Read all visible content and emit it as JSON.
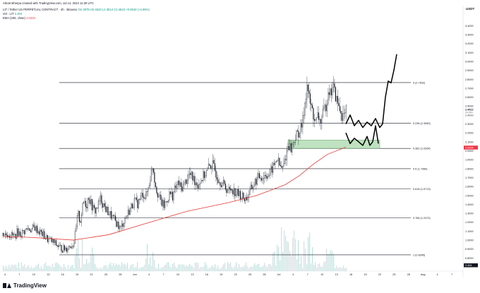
{
  "header": {
    "credit": "AltcoinSherpa created with TradingView.com, Jul 14, 2024 11:30 UTC",
    "symbol_line": {
      "symbol": "LIT / Tether US PERPETUAL CONTRACT · 4h · Binance",
      "ohlc": "O2.3878 H2.4623 L2.3814 C2.4522 +0.0643 (+2.69%)"
    },
    "vol_line": {
      "label": "Vol · LIT",
      "value": "2.404"
    },
    "ema_line": {
      "label": "EMA (200, close)",
      "value": "2.0334"
    }
  },
  "currency_label": "USDT",
  "brand": {
    "name": "TradingView",
    "logo_icon": "tradingview-logo-icon"
  },
  "chart_data": {
    "type": "candlestick",
    "timeframe": "4h",
    "y_axis_ticks": [
      "3.4000",
      "3.3000",
      "3.2000",
      "3.1000",
      "3.0000",
      "2.9000",
      "2.8000",
      "2.7000",
      "2.6000",
      "2.5000",
      "2.4000",
      "2.3000",
      "2.2000",
      "2.1000",
      "2.0000",
      "1.9000",
      "1.8000",
      "1.7000",
      "1.6000",
      "1.5000",
      "1.4000",
      "1.3000",
      "1.2000",
      "1.1000",
      "1.0000",
      "0.9000",
      "0.8000"
    ],
    "ylim": [
      0.7,
      3.45
    ],
    "x_axis_ticks": [
      "4",
      "7",
      "10",
      "13",
      "16",
      "19",
      "22",
      "25",
      "28",
      "Jun",
      "4",
      "7",
      "10",
      "13",
      "16",
      "19",
      "22",
      "25",
      "28",
      "Jul",
      "4",
      "7",
      "10",
      "13",
      "16",
      "19",
      "22",
      "25",
      "28",
      "Aug",
      "4",
      "7"
    ],
    "price_axis_labels": {
      "current": "2.4522",
      "current_sub": "2h 29m",
      "ema": "2.0334"
    },
    "fibonacci_levels": [
      {
        "label": "0 (2.7632)",
        "value": 2.7632
      },
      {
        "label": "0.236 (2.3080)",
        "value": 2.308
      },
      {
        "label": "0.382 (2.0264)",
        "value": 2.0264
      },
      {
        "label": "0.5 (1.7989)",
        "value": 1.7989
      },
      {
        "label": "0.618 (1.5713)",
        "value": 1.5713
      },
      {
        "label": "0.786 (1.2472)",
        "value": 1.2472
      },
      {
        "label": "1 (0.8345)",
        "value": 0.8345
      }
    ],
    "support_zone": {
      "low": 2.0264,
      "high": 2.12
    },
    "price_path": [
      [
        0,
        1.08
      ],
      [
        4,
        1.06
      ],
      [
        8,
        1.07
      ],
      [
        12,
        1.05
      ],
      [
        16,
        1.04
      ],
      [
        20,
        1.09
      ],
      [
        25,
        1.07
      ],
      [
        30,
        1.1
      ],
      [
        35,
        1.13
      ],
      [
        40,
        1.12
      ],
      [
        45,
        1.14
      ],
      [
        50,
        1.1
      ],
      [
        55,
        1.07
      ],
      [
        60,
        1.03
      ],
      [
        65,
        1.0
      ],
      [
        70,
        0.98
      ],
      [
        75,
        0.95
      ],
      [
        80,
        0.92
      ],
      [
        85,
        0.9
      ],
      [
        90,
        0.91
      ],
      [
        95,
        0.94
      ],
      [
        100,
        0.96
      ],
      [
        103,
        1.1
      ],
      [
        106,
        1.3
      ],
      [
        109,
        1.2
      ],
      [
        112,
        1.35
      ],
      [
        115,
        1.45
      ],
      [
        118,
        1.38
      ],
      [
        121,
        1.5
      ],
      [
        124,
        1.42
      ],
      [
        127,
        1.36
      ],
      [
        130,
        1.32
      ],
      [
        134,
        1.38
      ],
      [
        138,
        1.46
      ],
      [
        142,
        1.4
      ],
      [
        146,
        1.34
      ],
      [
        150,
        1.3
      ],
      [
        154,
        1.26
      ],
      [
        158,
        1.22
      ],
      [
        162,
        1.18
      ],
      [
        166,
        1.12
      ],
      [
        170,
        1.2
      ],
      [
        174,
        1.26
      ],
      [
        178,
        1.32
      ],
      [
        182,
        1.38
      ],
      [
        186,
        1.44
      ],
      [
        190,
        1.4
      ],
      [
        194,
        1.46
      ],
      [
        198,
        1.52
      ],
      [
        202,
        1.48
      ],
      [
        206,
        1.6
      ],
      [
        209,
        1.72
      ],
      [
        212,
        1.85
      ],
      [
        215,
        1.65
      ],
      [
        218,
        1.55
      ],
      [
        221,
        1.48
      ],
      [
        224,
        1.42
      ],
      [
        228,
        1.38
      ],
      [
        232,
        1.45
      ],
      [
        236,
        1.52
      ],
      [
        240,
        1.5
      ],
      [
        244,
        1.58
      ],
      [
        248,
        1.64
      ],
      [
        252,
        1.58
      ],
      [
        256,
        1.62
      ],
      [
        260,
        1.68
      ],
      [
        264,
        1.74
      ],
      [
        268,
        1.7
      ],
      [
        272,
        1.66
      ],
      [
        276,
        1.62
      ],
      [
        280,
        1.67
      ],
      [
        284,
        1.72
      ],
      [
        288,
        1.76
      ],
      [
        292,
        1.82
      ],
      [
        296,
        1.86
      ],
      [
        300,
        1.78
      ],
      [
        304,
        1.7
      ],
      [
        308,
        1.66
      ],
      [
        312,
        1.62
      ],
      [
        316,
        1.58
      ],
      [
        320,
        1.55
      ],
      [
        324,
        1.58
      ],
      [
        328,
        1.54
      ],
      [
        332,
        1.52
      ],
      [
        336,
        1.5
      ],
      [
        340,
        1.48
      ],
      [
        344,
        1.46
      ],
      [
        348,
        1.52
      ],
      [
        352,
        1.58
      ],
      [
        356,
        1.64
      ],
      [
        360,
        1.68
      ],
      [
        364,
        1.72
      ],
      [
        368,
        1.7
      ],
      [
        372,
        1.74
      ],
      [
        376,
        1.72
      ],
      [
        380,
        1.78
      ],
      [
        384,
        1.84
      ],
      [
        388,
        1.92
      ],
      [
        392,
        1.82
      ],
      [
        396,
        1.8
      ],
      [
        400,
        1.92
      ],
      [
        404,
        2.08
      ],
      [
        408,
        2.02
      ],
      [
        412,
        2.12
      ],
      [
        416,
        2.18
      ],
      [
        420,
        2.22
      ],
      [
        424,
        2.3
      ],
      [
        428,
        2.58
      ],
      [
        431,
        2.75
      ],
      [
        434,
        2.55
      ],
      [
        437,
        2.48
      ],
      [
        440,
        2.38
      ],
      [
        443,
        2.3
      ],
      [
        446,
        2.4
      ],
      [
        449,
        2.32
      ],
      [
        452,
        2.38
      ],
      [
        455,
        2.45
      ],
      [
        458,
        2.52
      ],
      [
        461,
        2.72
      ],
      [
        464,
        2.62
      ],
      [
        467,
        2.75
      ],
      [
        470,
        2.64
      ],
      [
        473,
        2.55
      ],
      [
        476,
        2.48
      ],
      [
        480,
        2.4
      ],
      [
        484,
        2.38
      ],
      [
        486,
        2.45
      ]
    ],
    "ema_path": [
      [
        0,
        1.04
      ],
      [
        40,
        1.03
      ],
      [
        100,
        1.0
      ],
      [
        150,
        1.06
      ],
      [
        200,
        1.18
      ],
      [
        260,
        1.32
      ],
      [
        320,
        1.42
      ],
      [
        360,
        1.5
      ],
      [
        400,
        1.62
      ],
      [
        420,
        1.72
      ],
      [
        440,
        1.85
      ],
      [
        460,
        1.96
      ],
      [
        486,
        2.04
      ]
    ],
    "projection_path": [
      [
        486,
        2.3
      ],
      [
        492,
        2.4
      ],
      [
        498,
        2.28
      ],
      [
        504,
        2.34
      ],
      [
        510,
        2.26
      ],
      [
        516,
        2.32
      ],
      [
        522,
        2.28
      ],
      [
        528,
        2.36
      ],
      [
        534,
        2.26
      ],
      [
        538,
        2.3
      ],
      [
        542,
        2.6
      ],
      [
        546,
        2.78
      ],
      [
        550,
        2.76
      ],
      [
        554,
        2.9
      ],
      [
        558,
        3.08
      ]
    ],
    "alt_projection_path": [
      [
        486,
        2.2
      ],
      [
        492,
        2.08
      ],
      [
        498,
        2.14
      ],
      [
        504,
        2.1
      ],
      [
        510,
        2.06
      ],
      [
        516,
        2.16
      ],
      [
        520,
        2.06
      ],
      [
        524,
        2.1
      ],
      [
        528,
        2.28
      ],
      [
        532,
        2.08
      ]
    ]
  }
}
